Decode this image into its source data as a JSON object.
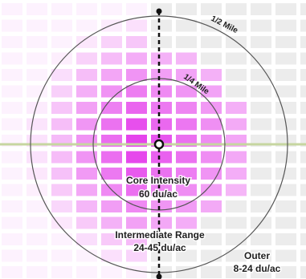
{
  "rings": {
    "half_mile": "1/2 Mile",
    "quarter_mile": "1/4 Mile"
  },
  "zones": {
    "core": {
      "title": "Core Intensity",
      "density": "60 du/ac"
    },
    "intermediate": {
      "title": "Intermediate Range",
      "density": "24-45 du/ac"
    },
    "outer": {
      "title": "Outer",
      "density": "8-24 du/ac"
    }
  },
  "colors": {
    "core": "#e020e8",
    "block_light": "#c8c8c8",
    "street_green": "#c6d6a0",
    "ring_stroke": "#555555",
    "axis": "#111111"
  }
}
